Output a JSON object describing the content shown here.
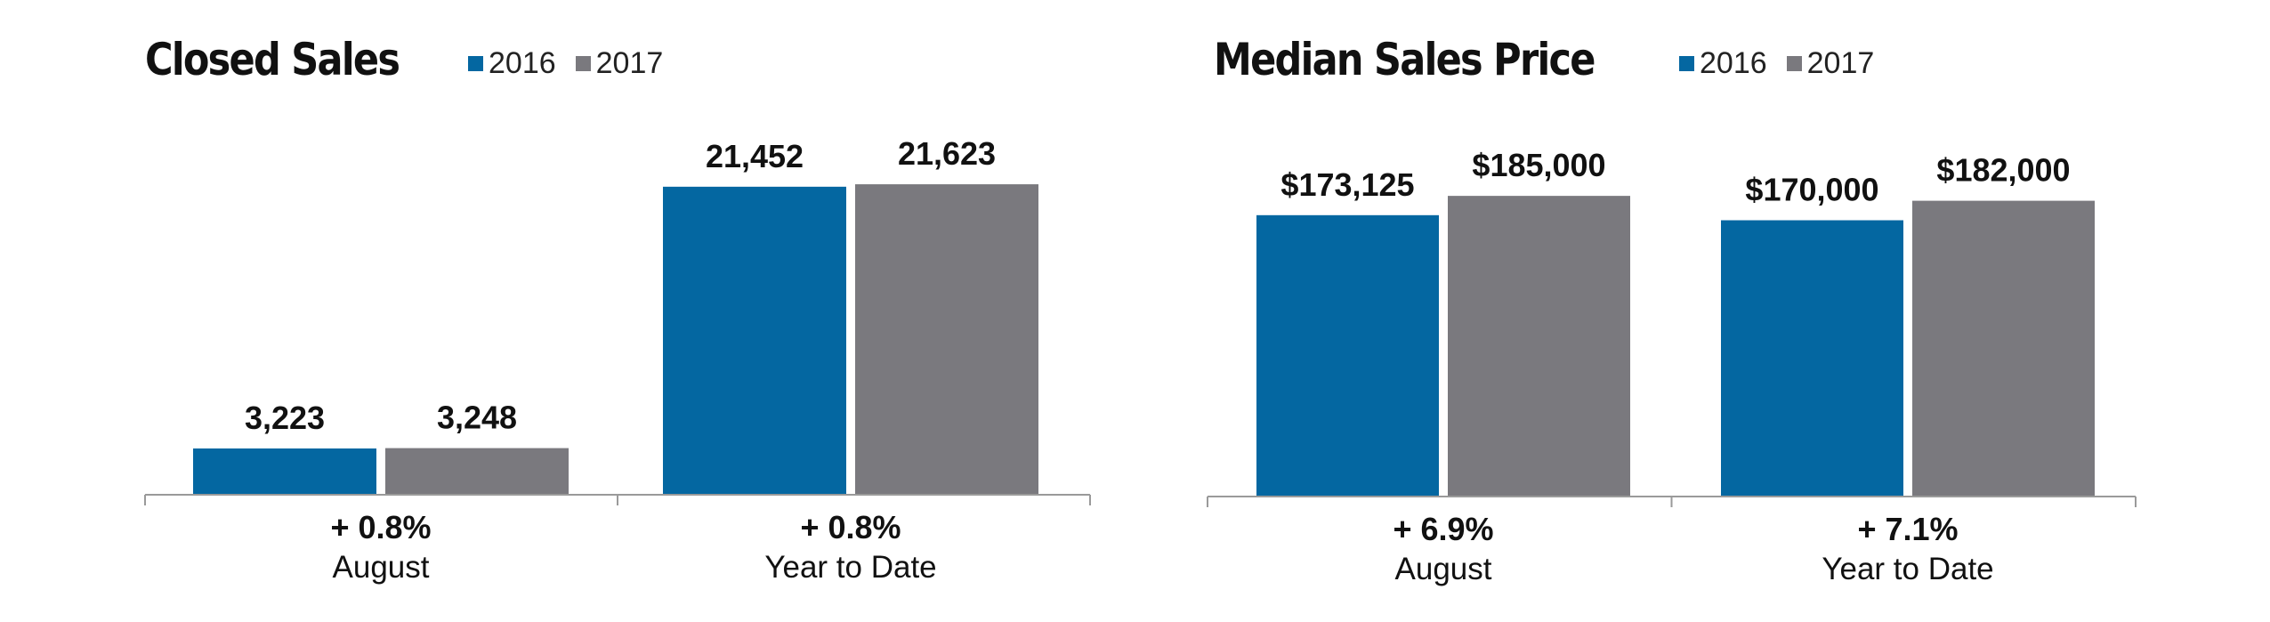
{
  "chart_data": [
    {
      "type": "bar",
      "title": "Closed Sales",
      "categories": [
        "August",
        "Year to Date"
      ],
      "changes": [
        "+ 0.8%",
        "+ 0.8%"
      ],
      "series": [
        {
          "name": "2016",
          "values": [
            3223,
            21452
          ],
          "labels": [
            "3,223",
            "21,452"
          ]
        },
        {
          "name": "2017",
          "values": [
            3248,
            21623
          ],
          "labels": [
            "3,248",
            "21,623"
          ]
        }
      ],
      "ylim": [
        0,
        22000
      ],
      "grid": false,
      "legend_position": "top"
    },
    {
      "type": "bar",
      "title": "Median Sales Price",
      "categories": [
        "August",
        "Year to Date"
      ],
      "changes": [
        "+ 6.9%",
        "+ 7.1%"
      ],
      "series": [
        {
          "name": "2016",
          "values": [
            173125,
            170000
          ],
          "labels": [
            "$173,125",
            "$170,000"
          ]
        },
        {
          "name": "2017",
          "values": [
            185000,
            182000
          ],
          "labels": [
            "$185,000",
            "$182,000"
          ]
        }
      ],
      "ylim": [
        0,
        190000
      ],
      "grid": false,
      "legend_position": "top"
    }
  ],
  "colors": {
    "2016": "#0467a1",
    "2017": "#7a797e",
    "axis": "#9a9a9a",
    "text": "#111111"
  }
}
